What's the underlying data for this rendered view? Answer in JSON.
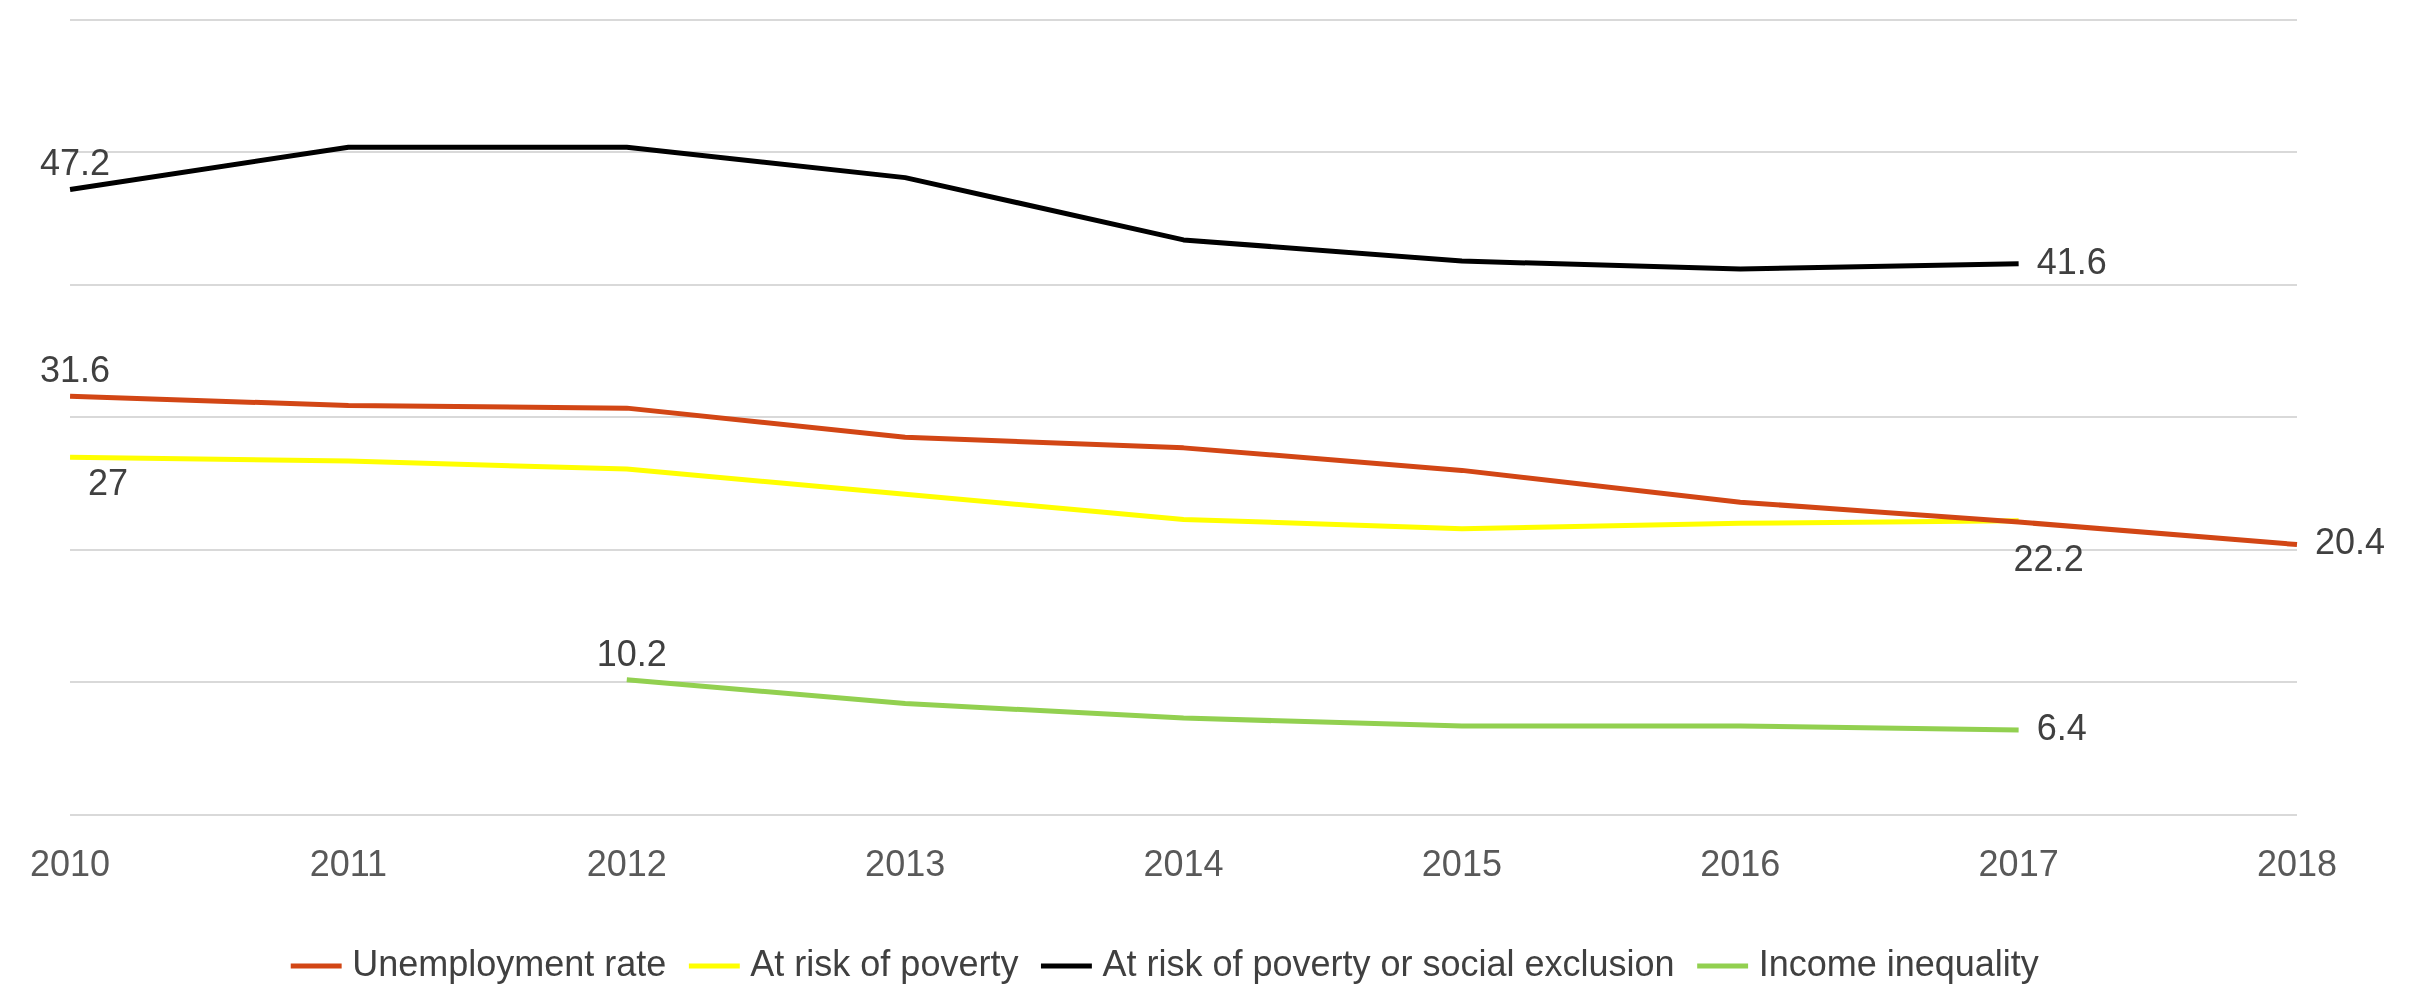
{
  "chart_data": {
    "type": "line",
    "categories": [
      "2010",
      "2011",
      "2012",
      "2013",
      "2014",
      "2015",
      "2016",
      "2017",
      "2018"
    ],
    "series": [
      {
        "name": "Unemployment rate",
        "color": "#d24615",
        "values": [
          31.6,
          30.9,
          30.7,
          28.5,
          27.7,
          26.0,
          23.6,
          22.1,
          20.4
        ],
        "value_labels": [
          "31.6",
          null,
          null,
          null,
          null,
          null,
          null,
          null,
          "20.4"
        ]
      },
      {
        "name": "At risk of poverty",
        "color": "#ffff00",
        "values": [
          27,
          26.7,
          26.1,
          24.2,
          22.3,
          21.6,
          22.0,
          22.2,
          null
        ],
        "value_labels": [
          "27",
          null,
          null,
          null,
          null,
          null,
          null,
          "22.2",
          null
        ]
      },
      {
        "name": "At risk of poverty or social exclusion",
        "color": "#000000",
        "values": [
          47.2,
          50.4,
          50.4,
          48.1,
          43.4,
          41.8,
          41.2,
          41.6,
          null
        ],
        "value_labels": [
          "47.2",
          null,
          null,
          null,
          null,
          null,
          null,
          "41.6",
          null
        ]
      },
      {
        "name": "Income inequality",
        "color": "#92d050",
        "values": [
          null,
          null,
          10.2,
          8.4,
          7.3,
          6.7,
          6.7,
          6.4,
          null
        ],
        "value_labels": [
          null,
          null,
          "10.2",
          null,
          null,
          null,
          null,
          "6.4",
          null
        ]
      }
    ],
    "ylim": [
      0,
      60
    ],
    "yticks": [
      {
        "value": 0,
        "label": null
      },
      {
        "value": 10,
        "label": null
      },
      {
        "value": 20,
        "label": null
      },
      {
        "value": 30,
        "label": null
      },
      {
        "value": 40,
        "label": null
      },
      {
        "value": 50,
        "label": null
      },
      {
        "value": 60,
        "label": null
      }
    ],
    "tick_labels": "x",
    "grid": "y",
    "legend": "bottom",
    "marker": "none",
    "line_style": "solid"
  }
}
